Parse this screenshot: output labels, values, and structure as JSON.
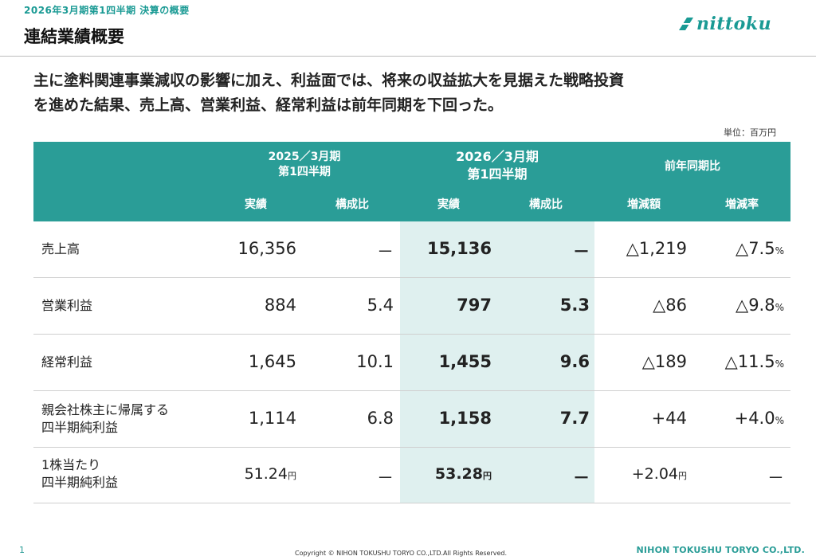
{
  "header": {
    "caption": "2026年3月期第1四半期 決算の概要",
    "title": "連結業績概要",
    "logo_text": "nittoku"
  },
  "summary": {
    "line1": "主に塗料関連事業減収の影響に加え、利益面では、将来の収益拡大を見据えた戦略投資",
    "line2": "を進めた結果、売上高、営業利益、経常利益は前年同期を下回った。"
  },
  "unit_note": "単位：百万円",
  "table": {
    "headers": {
      "prev_period_line1": "2025／3月期",
      "prev_period_line2": "第1四半期",
      "curr_period_line1": "2026／3月期",
      "curr_period_line2": "第1四半期",
      "yoy": "前年同期比",
      "sub_prev_actual": "実績",
      "sub_prev_ratio": "構成比",
      "sub_curr_actual": "実績",
      "sub_curr_ratio": "構成比",
      "sub_change": "増減額",
      "sub_rate": "増減率"
    },
    "rows": [
      {
        "label1": "売上高",
        "label2": "",
        "prev": "16,356",
        "prev_unit": "",
        "prev_ratio": "－",
        "curr": "15,136",
        "curr_unit": "",
        "curr_ratio": "－",
        "change": "△1,219",
        "change_unit": "",
        "rate": "△7.5",
        "rate_unit": "%"
      },
      {
        "label1": "営業利益",
        "label2": "",
        "prev": "884",
        "prev_unit": "",
        "prev_ratio": "5.4",
        "curr": "797",
        "curr_unit": "",
        "curr_ratio": "5.3",
        "change": "△86",
        "change_unit": "",
        "rate": "△9.8",
        "rate_unit": "%"
      },
      {
        "label1": "経常利益",
        "label2": "",
        "prev": "1,645",
        "prev_unit": "",
        "prev_ratio": "10.1",
        "curr": "1,455",
        "curr_unit": "",
        "curr_ratio": "9.6",
        "change": "△189",
        "change_unit": "",
        "rate": "△11.5",
        "rate_unit": "%"
      },
      {
        "label1": "親会社株主に帰属する",
        "label2": "四半期純利益",
        "prev": "1,114",
        "prev_unit": "",
        "prev_ratio": "6.8",
        "curr": "1,158",
        "curr_unit": "",
        "curr_ratio": "7.7",
        "change": "+44",
        "change_unit": "",
        "rate": "+4.0",
        "rate_unit": "%"
      },
      {
        "label1": "1株当たり",
        "label2": "四半期純利益",
        "prev": "51.24",
        "prev_unit": "円",
        "prev_ratio": "－",
        "curr": "53.28",
        "curr_unit": "円",
        "curr_ratio": "－",
        "change": "+2.04",
        "change_unit": "円",
        "rate": "－",
        "rate_unit": ""
      }
    ]
  },
  "footer": {
    "page": "1",
    "copyright": "Copyright © NIHON TOKUSHU TORYO CO.,LTD.All Rights Reserved.",
    "company": "NIHON TOKUSHU TORYO CO.,LTD."
  },
  "colors": {
    "accent": "#2a9d97",
    "highlight": "#dff0ef"
  }
}
